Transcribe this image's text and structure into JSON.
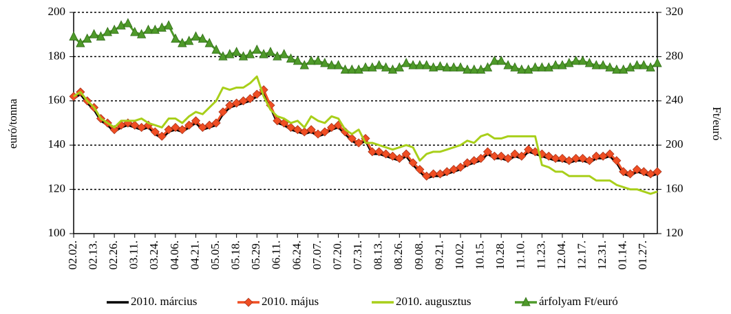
{
  "chart_data": {
    "type": "line",
    "y_label": "euró/tonna",
    "y2_label": "Ft/euró",
    "categories": [
      "02.02.",
      null,
      null,
      "02.13.",
      null,
      null,
      "02.26.",
      null,
      null,
      "03.11.",
      null,
      null,
      "03.24.",
      null,
      null,
      "04.06.",
      null,
      null,
      "04.21.",
      null,
      null,
      "05.05.",
      null,
      null,
      "05.18.",
      null,
      null,
      "05.29.",
      null,
      null,
      "06.11.",
      null,
      null,
      "06.24.",
      null,
      null,
      "07.07.",
      null,
      null,
      "07.20.",
      null,
      null,
      "07.31.",
      null,
      null,
      "08.13.",
      null,
      null,
      "08.26.",
      null,
      null,
      "09.08.",
      null,
      null,
      "09.21.",
      null,
      null,
      "10.02.",
      null,
      null,
      "10.15.",
      null,
      null,
      "10.28.",
      null,
      null,
      "11.10.",
      null,
      null,
      "11.23.",
      null,
      null,
      "12.04.",
      null,
      null,
      "12.17.",
      null,
      null,
      "12.31.",
      null,
      null,
      "01.14.",
      null,
      null,
      "01.27.",
      null,
      null
    ],
    "series": [
      {
        "name": "2010. március",
        "color": "#000000",
        "marker": "none",
        "values": [
          161,
          163,
          159,
          156,
          151,
          149,
          146,
          148,
          149,
          148,
          147,
          148,
          145,
          143,
          146,
          147,
          146,
          148,
          150,
          147,
          148,
          149,
          154,
          157,
          158,
          159,
          160,
          162,
          164,
          157,
          150,
          149,
          147,
          146,
          145,
          146,
          144,
          145,
          147,
          148,
          145,
          142,
          140,
          142,
          136,
          136,
          135,
          134,
          133,
          135,
          131,
          128,
          125,
          126,
          126,
          127,
          128,
          129,
          131,
          132,
          133,
          136,
          134,
          134,
          133,
          135,
          134,
          137,
          136,
          135,
          134,
          133,
          133,
          132,
          133,
          133,
          132,
          134,
          134,
          135,
          132,
          127,
          126,
          128,
          127,
          126,
          127
        ]
      },
      {
        "name": "2010. május",
        "color": "#f04e23",
        "marker": "diamond",
        "values": [
          162,
          164,
          160,
          157,
          152,
          150,
          147,
          149,
          150,
          149,
          148,
          149,
          146,
          144,
          147,
          148,
          147,
          149,
          151,
          148,
          149,
          150,
          155,
          158,
          159,
          160,
          161,
          163,
          165,
          158,
          151,
          150,
          148,
          147,
          146,
          147,
          145,
          146,
          148,
          149,
          146,
          143,
          141,
          143,
          137,
          137,
          136,
          135,
          134,
          136,
          132,
          129,
          126,
          127,
          127,
          128,
          129,
          130,
          132,
          133,
          134,
          137,
          135,
          135,
          134,
          136,
          135,
          138,
          137,
          136,
          135,
          134,
          134,
          133,
          134,
          134,
          133,
          135,
          135,
          136,
          133,
          128,
          127,
          129,
          128,
          127,
          128
        ]
      },
      {
        "name": "2010. augusztus",
        "color": "#a8cf1a",
        "marker": "none",
        "values": [
          162,
          164,
          160,
          157,
          152,
          150,
          148,
          151,
          151,
          151,
          152,
          150,
          149,
          148,
          152,
          152,
          150,
          153,
          155,
          154,
          157,
          160,
          166,
          165,
          166,
          166,
          168,
          171,
          162,
          156,
          153,
          152,
          150,
          151,
          148,
          153,
          151,
          150,
          153,
          152,
          147,
          145,
          147,
          141,
          141,
          140,
          139,
          138,
          139,
          140,
          139,
          133,
          136,
          137,
          137,
          138,
          139,
          140,
          142,
          141,
          144,
          145,
          143,
          143,
          144,
          144,
          144,
          144,
          144,
          131,
          130,
          128,
          128,
          126,
          126,
          126,
          126,
          124,
          124,
          124,
          122,
          121,
          120,
          120,
          119,
          118,
          119
        ]
      },
      {
        "name": "árfolyam Ft/euró",
        "color": "#4f9a2a",
        "marker": "triangle",
        "axis": "y2",
        "values": [
          298,
          292,
          296,
          300,
          298,
          302,
          304,
          308,
          310,
          302,
          300,
          304,
          304,
          306,
          308,
          296,
          292,
          294,
          298,
          296,
          292,
          286,
          280,
          282,
          284,
          280,
          282,
          286,
          282,
          284,
          280,
          282,
          278,
          276,
          272,
          276,
          276,
          274,
          272,
          272,
          268,
          268,
          268,
          270,
          270,
          272,
          270,
          268,
          270,
          274,
          272,
          272,
          272,
          270,
          271,
          270,
          270,
          270,
          268,
          268,
          268,
          270,
          276,
          276,
          272,
          270,
          268,
          268,
          270,
          270,
          270,
          272,
          272,
          274,
          276,
          276,
          274,
          272,
          272,
          270,
          268,
          268,
          270,
          272,
          272,
          270,
          274
        ]
      }
    ],
    "ylim": [
      100,
      200
    ],
    "yticks": [
      100,
      120,
      140,
      160,
      180,
      200
    ],
    "y2lim": [
      120,
      320
    ],
    "y2ticks": [
      120,
      160,
      200,
      240,
      280,
      320
    ],
    "grid": true,
    "legend": "bottom"
  }
}
